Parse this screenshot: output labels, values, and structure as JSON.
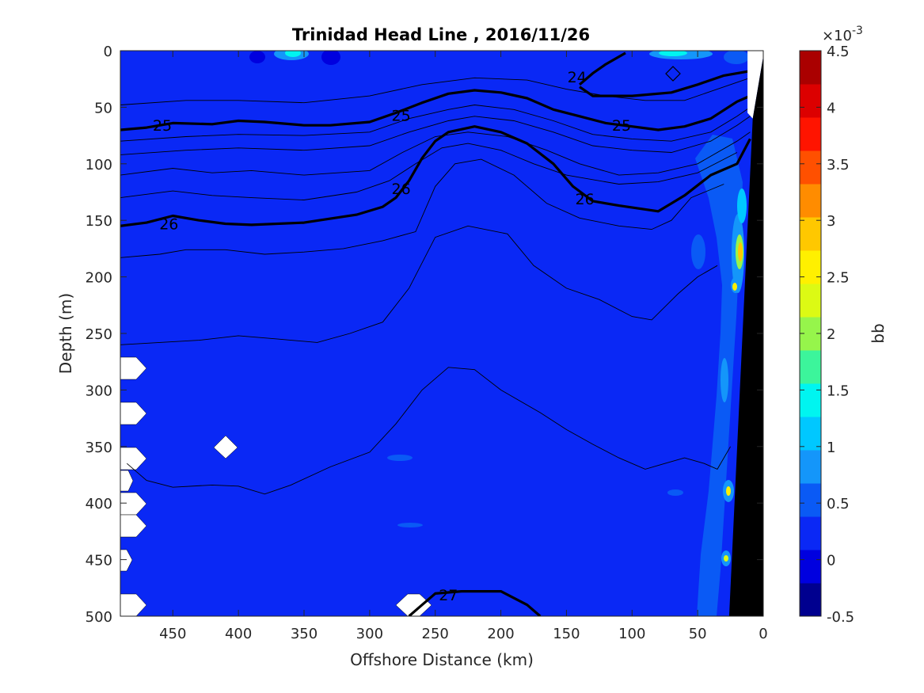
{
  "chart_data": {
    "type": "heatmap",
    "subtype": "filled-contour section with density contours",
    "title": "Trinidad Head Line , 2016/11/26",
    "xlabel": "Offshore Distance (km)",
    "ylabel": "Depth (m)",
    "xlim": [
      490,
      0
    ],
    "ylim": [
      500,
      0
    ],
    "x_reversed": true,
    "y_reversed": true,
    "x_ticks": [
      450,
      400,
      350,
      300,
      250,
      200,
      150,
      100,
      50,
      0
    ],
    "x_tick_labels": [
      "450",
      "400",
      "350",
      "300",
      "250",
      "200",
      "150",
      "100",
      "50",
      "0"
    ],
    "y_ticks": [
      0,
      50,
      100,
      150,
      200,
      250,
      300,
      350,
      400,
      450,
      500
    ],
    "y_tick_labels": [
      "0",
      "50",
      "100",
      "150",
      "200",
      "250",
      "300",
      "350",
      "400",
      "450",
      "500"
    ],
    "grid": false,
    "background_value_color": "#0a28f5",
    "colorbar": {
      "label": "bb",
      "exponent_label": "×10",
      "exponent_power": "-3",
      "range": [
        -0.5,
        4.5
      ],
      "tick_values": [
        4.5,
        4,
        3.5,
        3,
        2.5,
        2,
        1.5,
        1,
        0.5,
        0,
        -0.5
      ],
      "tick_labels": [
        "4.5",
        "4",
        "3.5",
        "3",
        "2.5",
        "2",
        "1.5",
        "1",
        "0.5",
        "0",
        "-0.5"
      ],
      "colors": [
        "#00008f",
        "#0000df",
        "#0a28f5",
        "#0a5af5",
        "#1496fa",
        "#00c8ff",
        "#00f5f0",
        "#3cf59b",
        "#96f54b",
        "#dcfa14",
        "#fff000",
        "#ffc800",
        "#ff8c00",
        "#ff5000",
        "#ff1400",
        "#dc0000",
        "#aa0000"
      ]
    },
    "thick_contours": [
      {
        "level": "25",
        "points": [
          [
            490,
            70
          ],
          [
            470,
            68
          ],
          [
            450,
            64
          ],
          [
            420,
            65
          ],
          [
            400,
            62
          ],
          [
            380,
            63
          ],
          [
            350,
            66
          ],
          [
            330,
            66
          ],
          [
            300,
            63
          ],
          [
            280,
            55
          ],
          [
            260,
            46
          ],
          [
            240,
            38
          ],
          [
            220,
            35
          ],
          [
            200,
            37
          ],
          [
            180,
            42
          ],
          [
            160,
            52
          ],
          [
            140,
            58
          ],
          [
            120,
            64
          ],
          [
            100,
            67
          ],
          [
            80,
            70
          ],
          [
            60,
            67
          ],
          [
            40,
            60
          ],
          [
            20,
            45
          ],
          [
            10,
            40
          ]
        ]
      },
      {
        "level": "26",
        "points": [
          [
            490,
            155
          ],
          [
            470,
            152
          ],
          [
            450,
            146
          ],
          [
            430,
            150
          ],
          [
            410,
            153
          ],
          [
            390,
            154
          ],
          [
            350,
            152
          ],
          [
            310,
            145
          ],
          [
            290,
            138
          ],
          [
            280,
            130
          ],
          [
            270,
            115
          ],
          [
            260,
            95
          ],
          [
            250,
            80
          ],
          [
            240,
            72
          ],
          [
            220,
            67
          ],
          [
            200,
            72
          ],
          [
            180,
            82
          ],
          [
            160,
            100
          ],
          [
            145,
            120
          ],
          [
            130,
            133
          ],
          [
            110,
            137
          ],
          [
            80,
            142
          ],
          [
            60,
            128
          ],
          [
            40,
            110
          ],
          [
            20,
            100
          ],
          [
            10,
            78
          ]
        ]
      },
      {
        "level": "24",
        "points": [
          [
            140,
            30
          ],
          [
            130,
            20
          ],
          [
            120,
            12
          ],
          [
            105,
            2
          ]
        ]
      },
      {
        "level": "24b",
        "points": [
          [
            140,
            32
          ],
          [
            130,
            40
          ],
          [
            100,
            40
          ],
          [
            70,
            37
          ],
          [
            50,
            30
          ],
          [
            30,
            22
          ],
          [
            10,
            18
          ]
        ]
      },
      {
        "level": "27",
        "points": [
          [
            270,
            500
          ],
          [
            260,
            490
          ],
          [
            250,
            480
          ],
          [
            230,
            478
          ],
          [
            200,
            478
          ],
          [
            180,
            490
          ],
          [
            170,
            500
          ]
        ]
      }
    ],
    "contour_labels": [
      {
        "text": "25",
        "x": 458,
        "y": 66
      },
      {
        "text": "25",
        "x": 276,
        "y": 57
      },
      {
        "text": "25",
        "x": 108,
        "y": 66
      },
      {
        "text": "26",
        "x": 453,
        "y": 153
      },
      {
        "text": "26",
        "x": 276,
        "y": 122
      },
      {
        "text": "26",
        "x": 136,
        "y": 131
      },
      {
        "text": "24",
        "x": 142,
        "y": 23
      },
      {
        "text": "27",
        "x": 240,
        "y": 481
      }
    ],
    "thin_contours": [
      [
        [
          490,
          48
        ],
        [
          440,
          44
        ],
        [
          400,
          44
        ],
        [
          350,
          46
        ],
        [
          300,
          40
        ],
        [
          260,
          30
        ],
        [
          220,
          24
        ],
        [
          180,
          26
        ],
        [
          150,
          34
        ],
        [
          120,
          40
        ],
        [
          90,
          44
        ],
        [
          60,
          44
        ],
        [
          30,
          32
        ],
        [
          10,
          24
        ]
      ],
      [
        [
          490,
          80
        ],
        [
          440,
          76
        ],
        [
          400,
          74
        ],
        [
          350,
          75
        ],
        [
          300,
          72
        ],
        [
          270,
          60
        ],
        [
          240,
          52
        ],
        [
          220,
          48
        ],
        [
          190,
          52
        ],
        [
          160,
          62
        ],
        [
          130,
          74
        ],
        [
          100,
          78
        ],
        [
          70,
          80
        ],
        [
          40,
          72
        ],
        [
          20,
          58
        ],
        [
          10,
          50
        ]
      ],
      [
        [
          490,
          92
        ],
        [
          440,
          88
        ],
        [
          400,
          86
        ],
        [
          350,
          88
        ],
        [
          300,
          84
        ],
        [
          270,
          72
        ],
        [
          240,
          62
        ],
        [
          220,
          58
        ],
        [
          190,
          62
        ],
        [
          160,
          72
        ],
        [
          130,
          84
        ],
        [
          100,
          88
        ],
        [
          70,
          90
        ],
        [
          40,
          80
        ],
        [
          20,
          66
        ],
        [
          10,
          58
        ]
      ],
      [
        [
          490,
          110
        ],
        [
          450,
          104
        ],
        [
          420,
          108
        ],
        [
          390,
          106
        ],
        [
          350,
          110
        ],
        [
          300,
          106
        ],
        [
          275,
          90
        ],
        [
          250,
          76
        ],
        [
          225,
          72
        ],
        [
          195,
          76
        ],
        [
          165,
          88
        ],
        [
          140,
          100
        ],
        [
          110,
          110
        ],
        [
          80,
          108
        ],
        [
          50,
          100
        ],
        [
          20,
          80
        ],
        [
          10,
          72
        ]
      ],
      [
        [
          490,
          130
        ],
        [
          450,
          124
        ],
        [
          420,
          128
        ],
        [
          390,
          130
        ],
        [
          350,
          132
        ],
        [
          310,
          125
        ],
        [
          285,
          115
        ],
        [
          265,
          100
        ],
        [
          245,
          86
        ],
        [
          225,
          82
        ],
        [
          200,
          88
        ],
        [
          175,
          100
        ],
        [
          150,
          110
        ],
        [
          110,
          118
        ],
        [
          80,
          116
        ],
        [
          50,
          108
        ],
        [
          20,
          90
        ]
      ],
      [
        [
          490,
          183
        ],
        [
          460,
          180
        ],
        [
          440,
          176
        ],
        [
          410,
          176
        ],
        [
          380,
          180
        ],
        [
          350,
          178
        ],
        [
          320,
          175
        ],
        [
          290,
          168
        ],
        [
          265,
          160
        ],
        [
          250,
          120
        ],
        [
          235,
          100
        ],
        [
          215,
          96
        ],
        [
          190,
          110
        ],
        [
          165,
          135
        ],
        [
          140,
          148
        ],
        [
          110,
          155
        ],
        [
          85,
          158
        ],
        [
          70,
          150
        ],
        [
          55,
          130
        ],
        [
          30,
          118
        ]
      ],
      [
        [
          490,
          260
        ],
        [
          460,
          258
        ],
        [
          430,
          256
        ],
        [
          400,
          252
        ],
        [
          370,
          255
        ],
        [
          340,
          258
        ],
        [
          315,
          250
        ],
        [
          290,
          240
        ],
        [
          270,
          210
        ],
        [
          250,
          165
        ],
        [
          225,
          155
        ],
        [
          195,
          162
        ],
        [
          175,
          190
        ],
        [
          150,
          210
        ],
        [
          125,
          220
        ],
        [
          100,
          235
        ],
        [
          85,
          238
        ],
        [
          65,
          215
        ],
        [
          50,
          200
        ],
        [
          35,
          190
        ]
      ],
      [
        [
          485,
          365
        ],
        [
          470,
          380
        ],
        [
          450,
          386
        ],
        [
          420,
          384
        ],
        [
          400,
          385
        ],
        [
          380,
          392
        ],
        [
          360,
          384
        ],
        [
          330,
          368
        ],
        [
          300,
          355
        ],
        [
          280,
          330
        ],
        [
          260,
          300
        ],
        [
          240,
          280
        ],
        [
          220,
          282
        ],
        [
          200,
          300
        ],
        [
          170,
          320
        ],
        [
          150,
          335
        ],
        [
          130,
          348
        ],
        [
          110,
          360
        ],
        [
          90,
          370
        ],
        [
          75,
          365
        ],
        [
          60,
          360
        ],
        [
          45,
          365
        ],
        [
          35,
          370
        ],
        [
          25,
          350
        ]
      ]
    ],
    "bottom_topography": [
      [
        26,
        500
      ],
      [
        0,
        500
      ],
      [
        0,
        5
      ],
      [
        8,
        60
      ]
    ],
    "coastal_fill": [
      [
        12,
        0
      ],
      [
        0,
        0
      ],
      [
        0,
        5
      ],
      [
        8,
        60
      ],
      [
        12,
        55
      ]
    ]
  }
}
